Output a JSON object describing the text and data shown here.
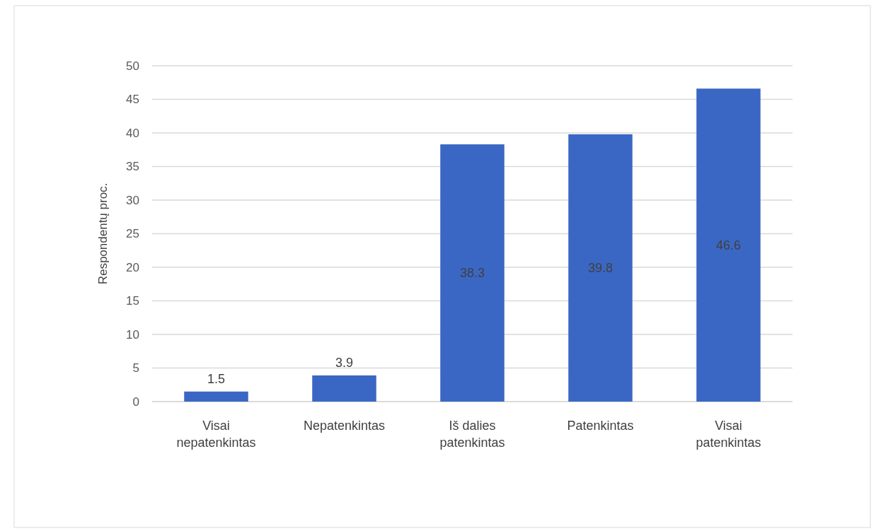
{
  "chart_data": {
    "type": "bar",
    "ylabel": "Respondentų proc.",
    "categories": [
      "Visai nepatenkintas",
      "Nepatenkintas",
      "Iš dalies patenkintas",
      "Patenkintas",
      "Visai patenkintas"
    ],
    "values": [
      1.5,
      3.9,
      38.3,
      39.8,
      46.6
    ],
    "color": "#3b67c4",
    "ylim": [
      0,
      50
    ],
    "yticks": [
      0,
      5,
      10,
      15,
      20,
      25,
      30,
      35,
      40,
      45,
      50
    ],
    "grid": "y",
    "data_labels": true
  }
}
